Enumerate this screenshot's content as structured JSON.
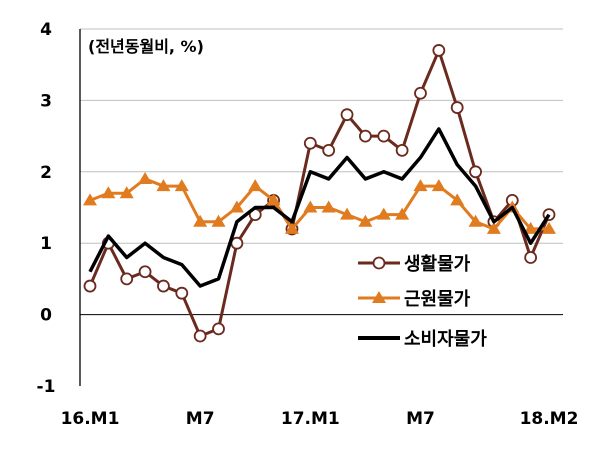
{
  "chart_data": {
    "type": "line",
    "unit_label": "(전년동월비, %)",
    "x_tick_labels": [
      "16.M1",
      "M7",
      "17.M1",
      "M7",
      "18.M2"
    ],
    "y_tick_labels": [
      "4",
      "3",
      "2",
      "1",
      "0",
      "-1"
    ],
    "ylim": [
      -1,
      4
    ],
    "grid": true,
    "legend_position": "right-middle",
    "x": [
      "16.M1",
      "16.M2",
      "16.M3",
      "16.M4",
      "16.M5",
      "16.M6",
      "16.M7",
      "16.M8",
      "16.M9",
      "16.M10",
      "16.M11",
      "16.M12",
      "17.M1",
      "17.M2",
      "17.M3",
      "17.M4",
      "17.M5",
      "17.M6",
      "17.M7",
      "17.M8",
      "17.M9",
      "17.M10",
      "17.M11",
      "17.M12",
      "18.M1",
      "18.M2"
    ],
    "series": [
      {
        "name": "생활물가",
        "color": "#6b2a1e",
        "marker": "circle",
        "values": [
          0.4,
          1.0,
          0.5,
          0.6,
          0.4,
          0.3,
          -0.3,
          -0.2,
          1.0,
          1.4,
          1.6,
          1.2,
          2.4,
          2.3,
          2.8,
          2.5,
          2.5,
          2.3,
          3.1,
          3.7,
          2.9,
          2.0,
          1.3,
          1.6,
          0.8,
          1.4
        ]
      },
      {
        "name": "근원물가",
        "color": "#e07b20",
        "marker": "triangle",
        "values": [
          1.6,
          1.7,
          1.7,
          1.9,
          1.8,
          1.8,
          1.3,
          1.3,
          1.5,
          1.8,
          1.6,
          1.2,
          1.5,
          1.5,
          1.4,
          1.3,
          1.4,
          1.4,
          1.8,
          1.8,
          1.6,
          1.3,
          1.2,
          1.5,
          1.2,
          1.2
        ]
      },
      {
        "name": "소비자물가",
        "color": "#000000",
        "marker": "none",
        "values": [
          0.6,
          1.1,
          0.8,
          1.0,
          0.8,
          0.7,
          0.4,
          0.5,
          1.3,
          1.5,
          1.5,
          1.3,
          2.0,
          1.9,
          2.2,
          1.9,
          2.0,
          1.9,
          2.2,
          2.6,
          2.1,
          1.8,
          1.3,
          1.5,
          1.0,
          1.4
        ]
      }
    ]
  }
}
